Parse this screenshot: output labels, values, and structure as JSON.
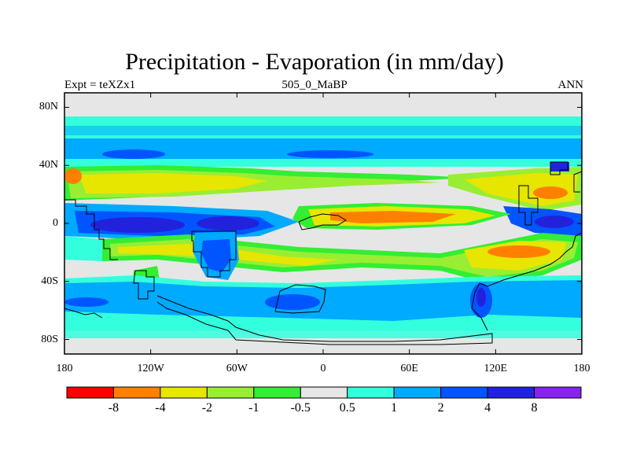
{
  "header": {
    "title": "Precipitation - Evaporation (in mm/day)",
    "left": "Expt = teXZx1",
    "center": "505_0_MaBP",
    "right": "ANN"
  },
  "axes": {
    "lat_labels": [
      "80N",
      "40N",
      "0",
      "40S",
      "80S"
    ],
    "lat_values": [
      80,
      40,
      0,
      -40,
      -80
    ],
    "lon_labels": [
      "180",
      "120W",
      "60W",
      "0",
      "60E",
      "120E",
      "180"
    ],
    "lon_values": [
      -180,
      -120,
      -60,
      0,
      60,
      120,
      180
    ],
    "lat_range": [
      -90,
      90
    ],
    "lon_range": [
      -180,
      180
    ]
  },
  "colorbar": {
    "levels": [
      "-8",
      "-4",
      "-2",
      "-1",
      "-0.5",
      "0.5",
      "1",
      "2",
      "4",
      "8"
    ],
    "colors": [
      "#ff0000",
      "#ff8000",
      "#e6e600",
      "#99ee33",
      "#33ee33",
      "#e6e6e6",
      "#33ffdd",
      "#00aaff",
      "#0055ff",
      "#2222dd",
      "#8822ee"
    ]
  },
  "map_colors": {
    "neutral": "#e6e6e6",
    "cyan": "#33ffdd",
    "lightblue": "#00aaff",
    "blue": "#0055ff",
    "darkblue": "#2222dd",
    "green": "#33ee33",
    "lightgreen": "#99ee33",
    "yellow": "#e6e600",
    "orange": "#ff8000",
    "red": "#ff0000"
  }
}
